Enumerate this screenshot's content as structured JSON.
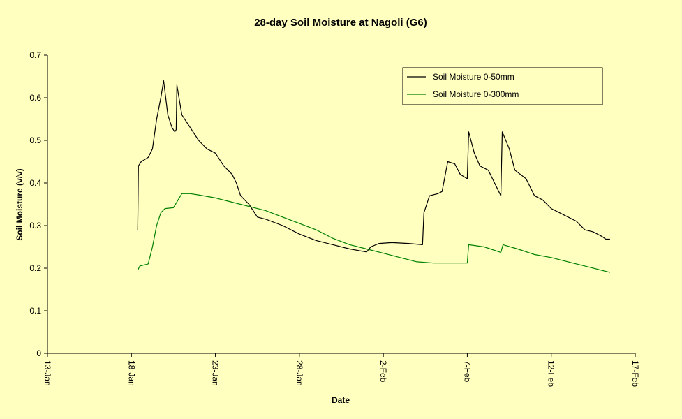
{
  "chart_data": {
    "type": "line",
    "title": "28-day Soil Moisture at Nagoli (G6)",
    "xlabel": "Date",
    "ylabel": "Soil Moisture (v/v)",
    "xlim": [
      "13-Jan",
      "17-Feb"
    ],
    "ylim": [
      0,
      0.7
    ],
    "x_ticks": [
      "13-Jan",
      "18-Jan",
      "23-Jan",
      "28-Jan",
      "2-Feb",
      "7-Feb",
      "12-Feb",
      "17-Feb"
    ],
    "y_ticks": [
      "0",
      "0.1",
      "0.2",
      "0.3",
      "0.4",
      "0.5",
      "0.6",
      "0.7"
    ],
    "grid": false,
    "legend_position": "top-right",
    "series": [
      {
        "name": "Soil Moisture 0-50mm",
        "color": "#000000",
        "points": [
          [
            "18-Jan 09:00",
            0.29
          ],
          [
            "18-Jan 10:00",
            0.44
          ],
          [
            "18-Jan 14:00",
            0.45
          ],
          [
            "19-Jan 00:00",
            0.46
          ],
          [
            "19-Jan 06:00",
            0.48
          ],
          [
            "19-Jan 12:00",
            0.55
          ],
          [
            "19-Jan 18:00",
            0.6
          ],
          [
            "19-Jan 22:00",
            0.64
          ],
          [
            "20-Jan 01:00",
            0.6
          ],
          [
            "20-Jan 04:00",
            0.56
          ],
          [
            "20-Jan 10:00",
            0.53
          ],
          [
            "20-Jan 14:00",
            0.52
          ],
          [
            "20-Jan 16:00",
            0.525
          ],
          [
            "20-Jan 17:00",
            0.63
          ],
          [
            "20-Jan 20:00",
            0.6
          ],
          [
            "21-Jan 00:00",
            0.56
          ],
          [
            "21-Jan 12:00",
            0.53
          ],
          [
            "22-Jan 00:00",
            0.5
          ],
          [
            "22-Jan 12:00",
            0.48
          ],
          [
            "23-Jan 00:00",
            0.47
          ],
          [
            "23-Jan 12:00",
            0.44
          ],
          [
            "24-Jan 00:00",
            0.42
          ],
          [
            "24-Jan 06:00",
            0.4
          ],
          [
            "24-Jan 12:00",
            0.37
          ],
          [
            "25-Jan 00:00",
            0.35
          ],
          [
            "25-Jan 12:00",
            0.32
          ],
          [
            "26-Jan 00:00",
            0.315
          ],
          [
            "27-Jan 00:00",
            0.3
          ],
          [
            "28-Jan 00:00",
            0.28
          ],
          [
            "29-Jan 00:00",
            0.265
          ],
          [
            "30-Jan 00:00",
            0.255
          ],
          [
            "31-Jan 00:00",
            0.245
          ],
          [
            "1-Feb 00:00",
            0.238
          ],
          [
            "1-Feb 06:00",
            0.25
          ],
          [
            "1-Feb 18:00",
            0.258
          ],
          [
            "2-Feb 12:00",
            0.26
          ],
          [
            "3-Feb 12:00",
            0.258
          ],
          [
            "4-Feb 08:00",
            0.255
          ],
          [
            "4-Feb 10:00",
            0.33
          ],
          [
            "4-Feb 18:00",
            0.37
          ],
          [
            "5-Feb 06:00",
            0.375
          ],
          [
            "5-Feb 12:00",
            0.38
          ],
          [
            "5-Feb 20:00",
            0.45
          ],
          [
            "6-Feb 06:00",
            0.445
          ],
          [
            "6-Feb 14:00",
            0.42
          ],
          [
            "7-Feb 00:00",
            0.41
          ],
          [
            "7-Feb 02:00",
            0.52
          ],
          [
            "7-Feb 10:00",
            0.47
          ],
          [
            "7-Feb 18:00",
            0.44
          ],
          [
            "8-Feb 06:00",
            0.43
          ],
          [
            "8-Feb 18:00",
            0.39
          ],
          [
            "9-Feb 00:00",
            0.37
          ],
          [
            "9-Feb 02:00",
            0.52
          ],
          [
            "9-Feb 12:00",
            0.48
          ],
          [
            "9-Feb 20:00",
            0.43
          ],
          [
            "10-Feb 12:00",
            0.41
          ],
          [
            "11-Feb 00:00",
            0.37
          ],
          [
            "11-Feb 12:00",
            0.36
          ],
          [
            "12-Feb 00:00",
            0.34
          ],
          [
            "12-Feb 12:00",
            0.33
          ],
          [
            "13-Feb 00:00",
            0.32
          ],
          [
            "13-Feb 12:00",
            0.31
          ],
          [
            "14-Feb 00:00",
            0.29
          ],
          [
            "14-Feb 12:00",
            0.285
          ],
          [
            "15-Feb 00:00",
            0.275
          ],
          [
            "15-Feb 06:00",
            0.268
          ],
          [
            "15-Feb 12:00",
            0.268
          ]
        ]
      },
      {
        "name": "Soil Moisture 0-300mm",
        "color": "#008000",
        "points": [
          [
            "18-Jan 09:00",
            0.195
          ],
          [
            "18-Jan 12:00",
            0.205
          ],
          [
            "19-Jan 00:00",
            0.21
          ],
          [
            "19-Jan 06:00",
            0.25
          ],
          [
            "19-Jan 12:00",
            0.3
          ],
          [
            "19-Jan 18:00",
            0.33
          ],
          [
            "20-Jan 00:00",
            0.34
          ],
          [
            "20-Jan 12:00",
            0.342
          ],
          [
            "21-Jan 00:00",
            0.375
          ],
          [
            "21-Jan 12:00",
            0.375
          ],
          [
            "22-Jan 00:00",
            0.372
          ],
          [
            "23-Jan 00:00",
            0.365
          ],
          [
            "24-Jan 00:00",
            0.355
          ],
          [
            "25-Jan 00:00",
            0.345
          ],
          [
            "26-Jan 00:00",
            0.335
          ],
          [
            "27-Jan 00:00",
            0.32
          ],
          [
            "28-Jan 00:00",
            0.305
          ],
          [
            "29-Jan 00:00",
            0.29
          ],
          [
            "30-Jan 00:00",
            0.27
          ],
          [
            "31-Jan 00:00",
            0.255
          ],
          [
            "1-Feb 00:00",
            0.245
          ],
          [
            "2-Feb 00:00",
            0.235
          ],
          [
            "3-Feb 00:00",
            0.225
          ],
          [
            "4-Feb 00:00",
            0.215
          ],
          [
            "5-Feb 00:00",
            0.212
          ],
          [
            "6-Feb 00:00",
            0.212
          ],
          [
            "7-Feb 00:00",
            0.212
          ],
          [
            "7-Feb 02:00",
            0.255
          ],
          [
            "8-Feb 00:00",
            0.25
          ],
          [
            "9-Feb 00:00",
            0.237
          ],
          [
            "9-Feb 03:00",
            0.255
          ],
          [
            "10-Feb 00:00",
            0.245
          ],
          [
            "11-Feb 00:00",
            0.232
          ],
          [
            "12-Feb 00:00",
            0.225
          ],
          [
            "13-Feb 00:00",
            0.215
          ],
          [
            "14-Feb 00:00",
            0.205
          ],
          [
            "15-Feb 00:00",
            0.195
          ],
          [
            "15-Feb 12:00",
            0.19
          ]
        ]
      }
    ]
  }
}
